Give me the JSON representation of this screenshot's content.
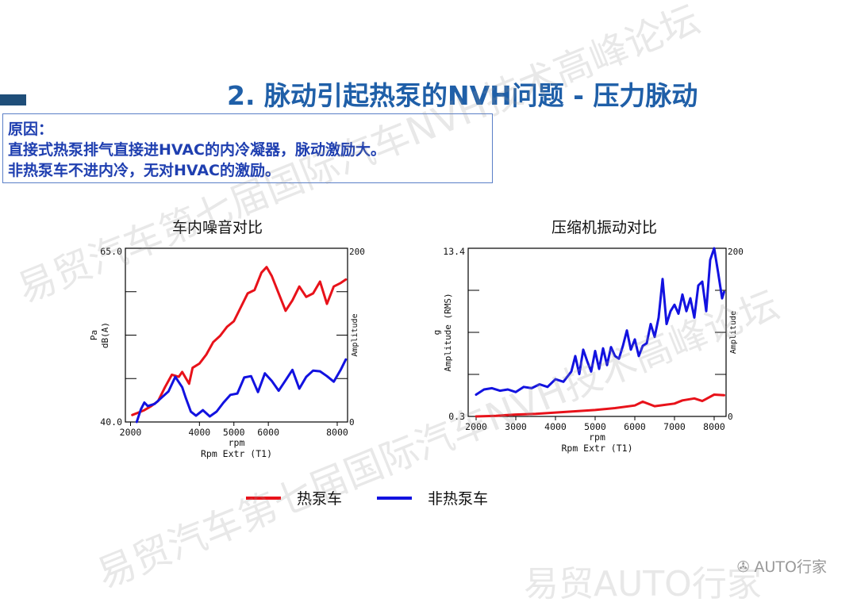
{
  "slide": {
    "title": "2. 脉动引起热泵的NVH问题 - 压力脉动",
    "reason_lines": [
      "原因：",
      "直接式热泵排气直接进HVAC的内冷凝器，脉动激励大。",
      "非热泵车不进内冷，无对HVAC的激励。"
    ],
    "watermarks": [
      "易贸汽车第七届国际汽车NVH技术高峰论坛",
      "易贸汽车第七届国际汽车NVH技术高峰论坛",
      "易贸AUTO行家"
    ],
    "brand": "AUTO行家"
  },
  "legend": [
    {
      "label": "热泵车",
      "color": "#e8121a"
    },
    {
      "label": "非热泵车",
      "color": "#1212e0"
    }
  ],
  "chart_data": [
    {
      "type": "line",
      "title": "车内噪音对比",
      "xlabel": "rpm",
      "xlabel2": "Rpm Extr (T1)",
      "ylabel": "Pa",
      "ylabel_unit": "dB(A)",
      "ylabel_right": "Amplitude",
      "xlim": [
        1850,
        8300
      ],
      "ylim": [
        40.0,
        65.0
      ],
      "y_top_label": "65.0",
      "y_bottom_label": "40.0",
      "right_top_label": "200",
      "right_bottom_label": "0",
      "x_ticks": [
        2000,
        4000,
        5000,
        6000,
        8000
      ],
      "x_tick_labels": [
        "2000",
        "4000",
        "5000",
        "6000",
        "8000"
      ],
      "series": [
        {
          "name": "热泵车",
          "color": "#e8121a",
          "x": [
            2050,
            2200,
            2400,
            2600,
            2800,
            3000,
            3200,
            3400,
            3500,
            3700,
            3800,
            4000,
            4200,
            4400,
            4600,
            4800,
            5000,
            5200,
            5400,
            5600,
            5800,
            5950,
            6100,
            6300,
            6500,
            6700,
            6900,
            7100,
            7300,
            7500,
            7700,
            7900,
            8100,
            8250
          ],
          "y": [
            41.0,
            41.3,
            41.7,
            42.3,
            43.0,
            45.0,
            46.8,
            46.5,
            47.2,
            45.5,
            47.8,
            48.4,
            49.7,
            51.5,
            52.4,
            53.7,
            54.5,
            56.5,
            58.5,
            59.0,
            61.5,
            62.3,
            61.0,
            58.5,
            56.0,
            57.5,
            59.5,
            58.0,
            58.5,
            60.2,
            57.0,
            59.5,
            60.0,
            60.5
          ]
        },
        {
          "name": "非热泵车",
          "color": "#1212e0",
          "x": [
            2180,
            2300,
            2400,
            2500,
            2700,
            2900,
            3100,
            3300,
            3500,
            3600,
            3750,
            3900,
            4100,
            4300,
            4500,
            4700,
            4900,
            5100,
            5300,
            5500,
            5700,
            5900,
            6100,
            6300,
            6500,
            6700,
            6900,
            7100,
            7300,
            7500,
            7700,
            7900,
            8100,
            8250
          ],
          "y": [
            40.0,
            41.8,
            42.8,
            42.3,
            42.6,
            43.5,
            44.4,
            46.5,
            45.0,
            43.5,
            41.5,
            40.9,
            41.7,
            40.8,
            41.5,
            42.8,
            43.9,
            44.1,
            46.4,
            46.6,
            44.3,
            47.0,
            45.9,
            44.5,
            46.0,
            47.5,
            44.8,
            46.5,
            47.4,
            47.3,
            46.6,
            45.8,
            47.5,
            49.0
          ]
        }
      ]
    },
    {
      "type": "line",
      "title": "压缩机振动对比",
      "xlabel": "rpm",
      "xlabel2": "Rpm Extr (T1)",
      "ylabel": "g",
      "ylabel_unit": "Amplitude (RMS)",
      "ylabel_right": "Amplitude",
      "xlim": [
        1800,
        8300
      ],
      "ylim": [
        0.3,
        13.4
      ],
      "y_top_label": "13.4",
      "y_bottom_label": "0.3",
      "right_top_label": "200",
      "right_bottom_label": "0",
      "x_ticks": [
        2000,
        3000,
        4000,
        5000,
        6000,
        7000,
        8000
      ],
      "x_tick_labels": [
        "2000",
        "3000",
        "4000",
        "5000",
        "6000",
        "7000",
        "8000"
      ],
      "series": [
        {
          "name": "热泵车",
          "color": "#e8121a",
          "x": [
            2000,
            2500,
            3000,
            3500,
            4000,
            4500,
            5000,
            5500,
            6000,
            6200,
            6500,
            7000,
            7200,
            7500,
            7700,
            8000,
            8250
          ],
          "y": [
            0.3,
            0.35,
            0.45,
            0.5,
            0.6,
            0.7,
            0.8,
            0.95,
            1.15,
            1.45,
            1.1,
            1.3,
            1.55,
            1.7,
            1.5,
            2.0,
            1.95
          ]
        },
        {
          "name": "非热泵车",
          "color": "#1212e0",
          "x": [
            2000,
            2200,
            2400,
            2600,
            2800,
            3000,
            3200,
            3400,
            3600,
            3800,
            4000,
            4200,
            4400,
            4500,
            4600,
            4700,
            4800,
            4900,
            5000,
            5100,
            5200,
            5300,
            5400,
            5500,
            5600,
            5700,
            5800,
            5900,
            6000,
            6100,
            6200,
            6300,
            6400,
            6500,
            6600,
            6700,
            6800,
            6900,
            7000,
            7100,
            7200,
            7300,
            7400,
            7500,
            7600,
            7700,
            7800,
            7900,
            8000,
            8100,
            8200,
            8250
          ],
          "y": [
            2.0,
            2.4,
            2.5,
            2.3,
            2.4,
            2.2,
            2.6,
            2.5,
            2.8,
            2.6,
            3.2,
            3.0,
            3.8,
            5.0,
            3.6,
            5.5,
            4.6,
            3.8,
            5.4,
            4.0,
            5.6,
            4.3,
            5.7,
            5.0,
            4.8,
            5.8,
            7.0,
            5.5,
            6.3,
            5.0,
            5.8,
            6.0,
            7.5,
            6.5,
            8.0,
            11.0,
            7.5,
            8.5,
            9.0,
            8.3,
            9.8,
            8.5,
            9.5,
            8.0,
            10.5,
            10.8,
            8.5,
            12.5,
            13.4,
            11.5,
            9.5,
            10.0
          ]
        }
      ]
    }
  ]
}
